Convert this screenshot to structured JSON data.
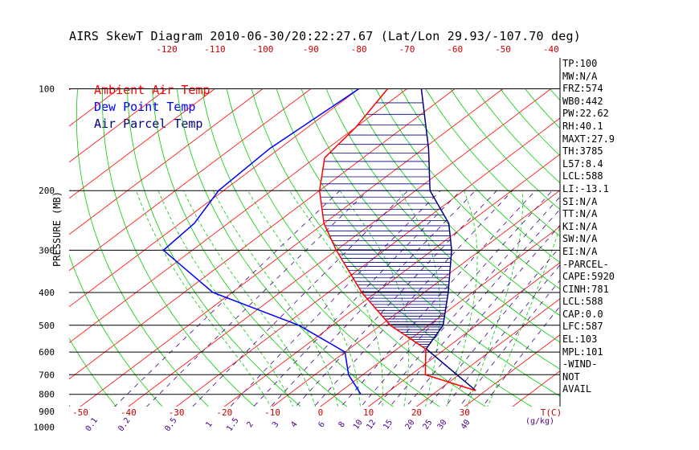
{
  "title": "AIRS SkewT Diagram 2010-06-30/20:22:27.67 (Lat/Lon 29.93/-107.70 deg)",
  "legend": {
    "ambient": "Ambient Air Temp",
    "dewpoint": "Dew Point Temp",
    "parcel": "Air Parcel Temp"
  },
  "ylabel": "PRESSURE (MB)",
  "stats": [
    "TP:100",
    "MW:N/A",
    "FRZ:574",
    "WB0:442",
    "PW:22.62",
    "RH:40.1",
    "MAXT:27.9",
    "TH:3785",
    "L57:8.4",
    "LCL:588",
    "LI:-13.1",
    "SI:N/A",
    "TT:N/A",
    "KI:N/A",
    "SW:N/A",
    "EI:N/A",
    "-PARCEL-",
    "CAPE:5920",
    "CINH:781",
    "LCL:588",
    "CAP:0.0",
    "LFC:587",
    "EL:103",
    "MPL:101",
    "-WIND-",
    "NOT",
    "AVAIL"
  ],
  "colors": {
    "ambient": "#ff0000",
    "dewpoint": "#0000ff",
    "parcel": "#000080",
    "isotherm": "#ff0000",
    "dry_adiabat": "#00cc00",
    "moist_adiabat": "#00cc00",
    "mixing_ratio": "#4b0082",
    "axis_text": "#000000",
    "bottom_temp_text": "#cc0000",
    "mixing_text": "#4b0082"
  },
  "chart_data": {
    "type": "line",
    "title": "AIRS SkewT Diagram 2010-06-30/20:22:27.67 (Lat/Lon 29.93/-107.70 deg)",
    "ylabel": "PRESSURE (MB)",
    "xlabel": "T(C)",
    "log_y": true,
    "ylim": [
      1050,
      100
    ],
    "x_bottom_range": [
      -50,
      40
    ],
    "pressure_ticks": [
      100,
      200,
      300,
      400,
      500,
      600,
      700,
      800,
      900,
      1000
    ],
    "bottom_temp_ticks": [
      -50,
      -40,
      -30,
      -20,
      -10,
      0,
      10,
      20,
      30
    ],
    "top_temp_ticks": [
      -120,
      -110,
      -100,
      -90,
      -80,
      -70,
      -60,
      -50,
      -40
    ],
    "mixing_ratio_labels": [
      "0.1",
      "0.2",
      "0.5",
      "1",
      "1.5",
      "2",
      "3",
      "4",
      "6",
      "8",
      "10",
      "12",
      "15",
      "20",
      "25",
      "30",
      "40"
    ],
    "mixing_ratio_unit_label": "(g/kg)",
    "temp_unit_label": "T(C)",
    "series": [
      {
        "name": "Ambient Air Temp",
        "pressure": [
          100,
          130,
          160,
          200,
          250,
          300,
          400,
          500,
          588,
          700,
          780
        ],
        "temperature": [
          -74,
          -70,
          -68,
          -60,
          -50,
          -40,
          -23,
          -8,
          6,
          13,
          27.9
        ]
      },
      {
        "name": "Dew Point Temp",
        "pressure": [
          100,
          150,
          200,
          250,
          300,
          400,
          500,
          600,
          700,
          800
        ],
        "temperature": [
          -80,
          -82,
          -81,
          -77,
          -76,
          -54,
          -27,
          -10,
          -3,
          5
        ]
      },
      {
        "name": "Air Parcel Temp",
        "pressure": [
          100,
          150,
          200,
          250,
          300,
          400,
          500,
          587,
          780
        ],
        "temperature": [
          -67,
          -49,
          -37,
          -24,
          -16,
          -5,
          3,
          6,
          27.9
        ]
      }
    ]
  }
}
